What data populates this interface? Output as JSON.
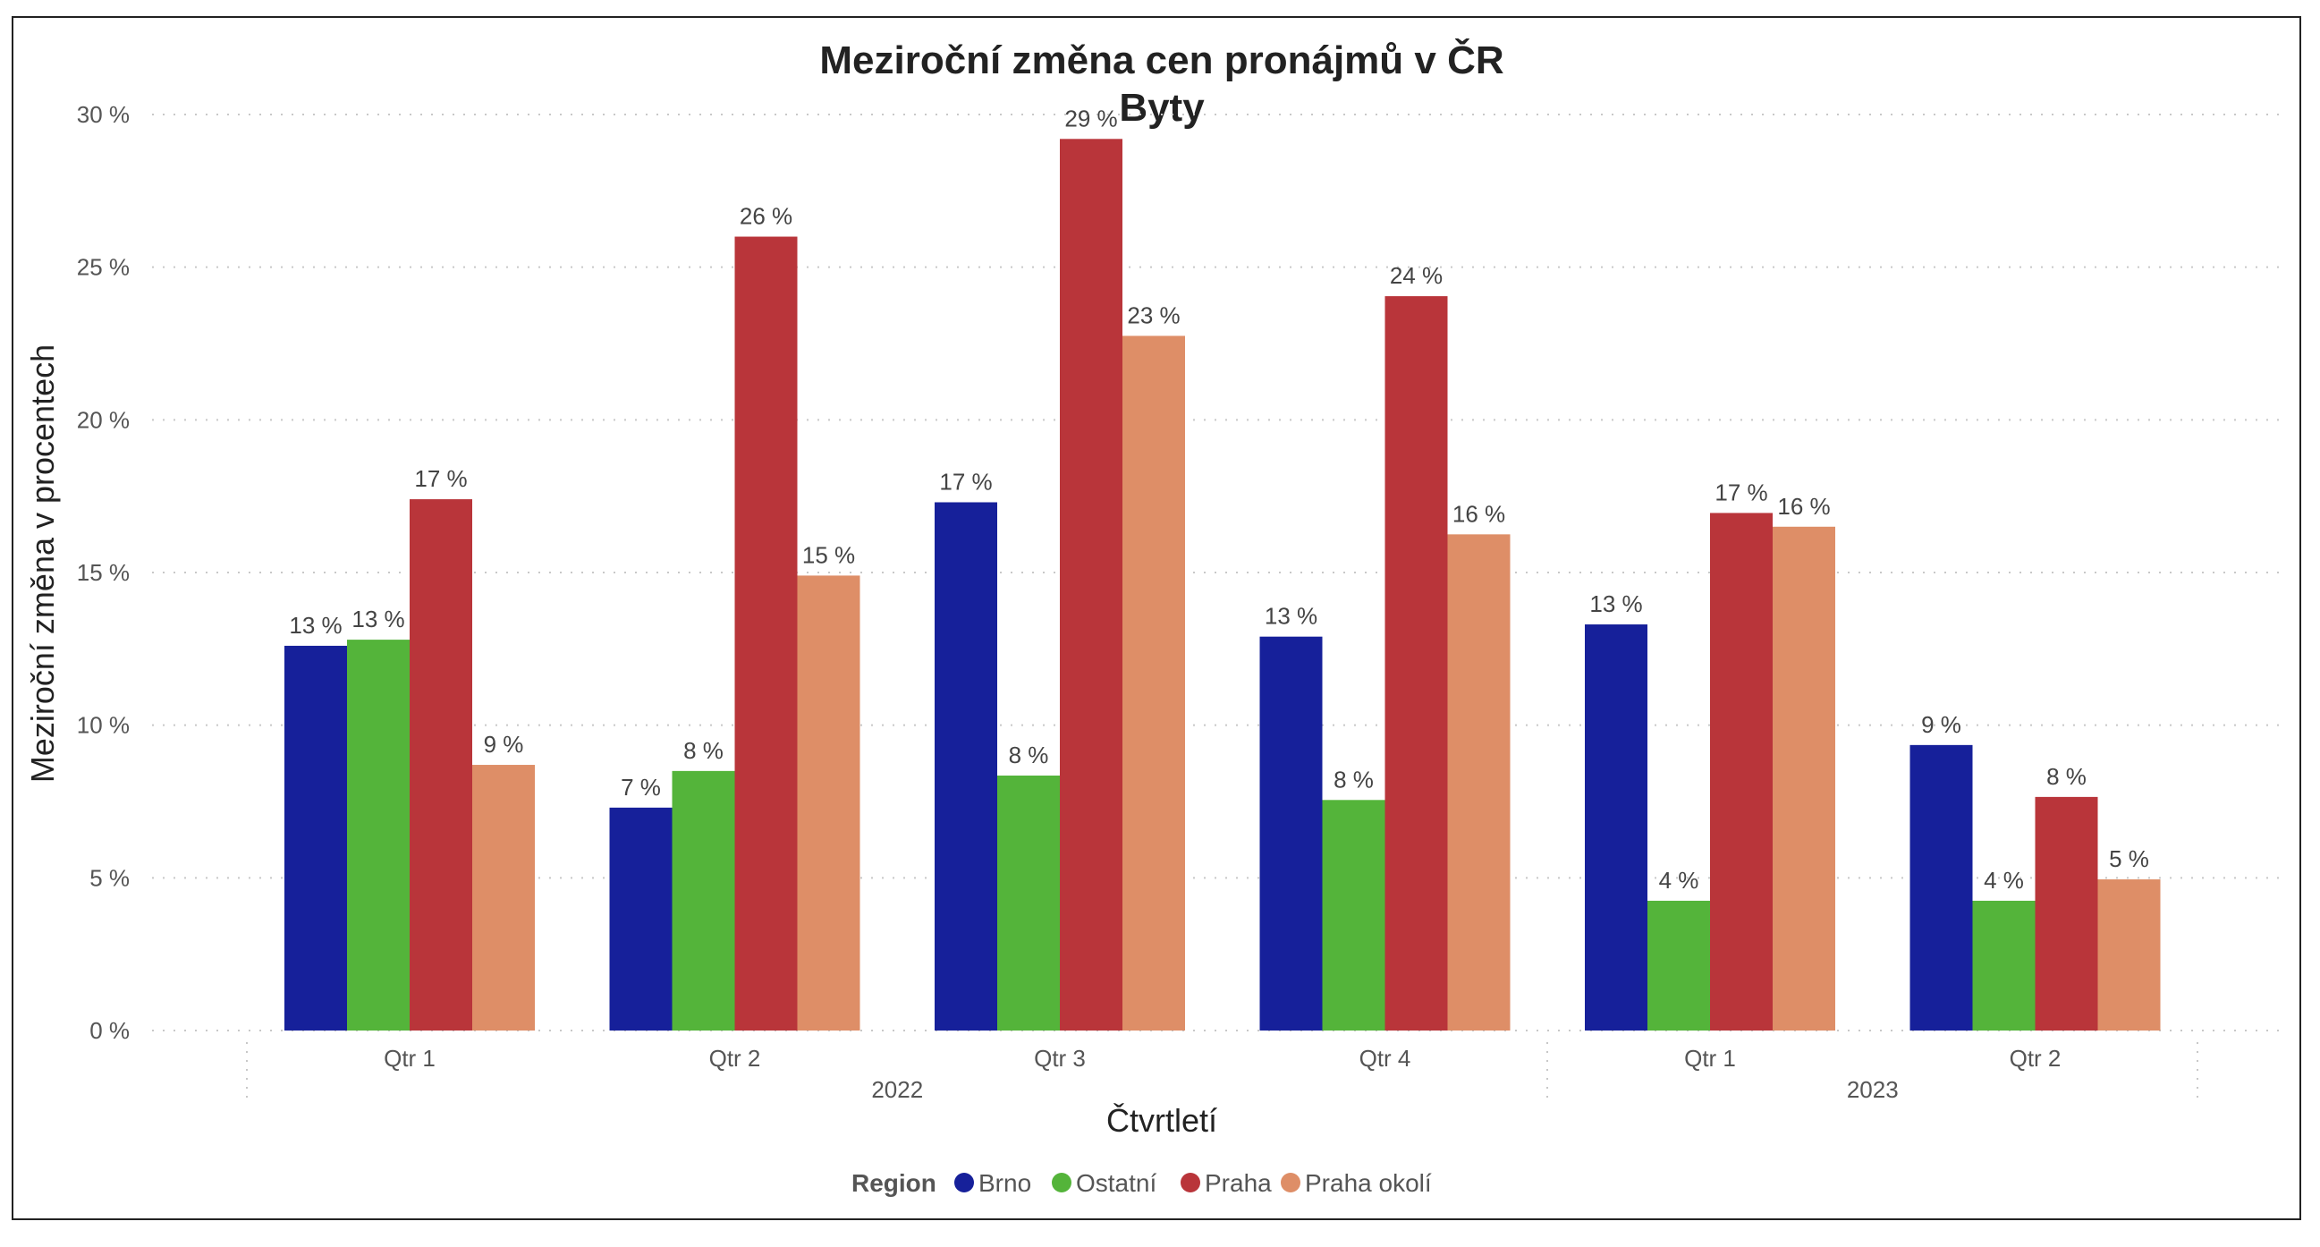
{
  "chart_data": {
    "type": "bar",
    "title": "Meziroční změna cen pronájmů v ČR",
    "subtitle": "Byty",
    "xlabel": "Čtvrtletí",
    "ylabel": "Meziroční změna v procentech",
    "ylim": [
      0,
      30
    ],
    "yticks": [
      "0 %",
      "5 %",
      "10 %",
      "15 %",
      "20 %",
      "25 %",
      "30 %"
    ],
    "categories": [
      "Qtr 1",
      "Qtr 2",
      "Qtr 3",
      "Qtr 4",
      "Qtr 1",
      "Qtr 2"
    ],
    "groups": [
      {
        "label": "2022",
        "categories": [
          "Qtr 1",
          "Qtr 2",
          "Qtr 3",
          "Qtr 4"
        ]
      },
      {
        "label": "2023",
        "categories": [
          "Qtr 1",
          "Qtr 2"
        ]
      }
    ],
    "legend_title": "Region",
    "legend_position": "bottom",
    "grid": true,
    "series": [
      {
        "name": "Brno",
        "color": "#16209a",
        "values": [
          12.6,
          7.3,
          17.3,
          12.9,
          13.3,
          9.35
        ],
        "labels": [
          "13 %",
          "7 %",
          "17 %",
          "13 %",
          "13 %",
          "9 %"
        ]
      },
      {
        "name": "Ostatní",
        "color": "#54b43a",
        "values": [
          12.8,
          8.5,
          8.35,
          7.55,
          4.25,
          4.25
        ],
        "labels": [
          "13 %",
          "8 %",
          "8 %",
          "8 %",
          "4 %",
          "4 %"
        ]
      },
      {
        "name": "Praha",
        "color": "#b9353a",
        "values": [
          17.4,
          26.0,
          29.2,
          24.05,
          16.95,
          7.65
        ],
        "labels": [
          "17 %",
          "26 %",
          "29 %",
          "24 %",
          "17 %",
          "8 %"
        ]
      },
      {
        "name": "Praha okolí",
        "color": "#de8e67",
        "values": [
          8.7,
          14.9,
          22.75,
          16.25,
          16.5,
          4.95
        ],
        "labels": [
          "9 %",
          "15 %",
          "23 %",
          "16 %",
          "16 %",
          "5 %"
        ]
      }
    ]
  }
}
